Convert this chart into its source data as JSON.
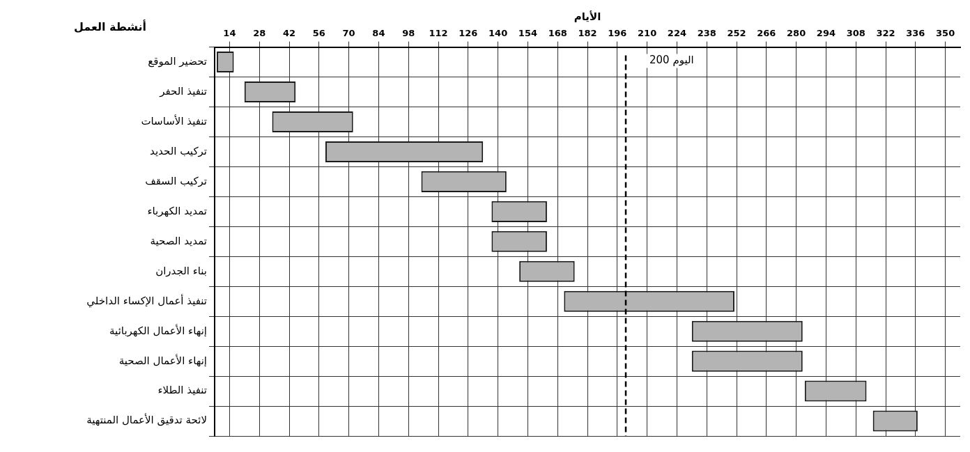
{
  "chart_data": {
    "type": "bar",
    "orientation": "horizontal",
    "xlabel": "الأيام",
    "ylabel": "أنشطة العمل",
    "categories": [
      "تحضير الموقع",
      "تنفيذ الحفر",
      "تنفيذ الأساسات",
      "تركيب الحديد",
      "تركيب السقف",
      "تمديد الكهرباء",
      "تمديد الصحية",
      "بناء الجدران",
      "تنفيذ أعمال الإكساء الداخلي",
      "إنهاء الأعمال الكهربائية",
      "إنهاء الأعمال الصحية",
      "تنفيذ الطلاء",
      "لائحة تدقيق الأعمال المنتهية"
    ],
    "base": [
      8,
      21,
      34,
      59,
      104,
      137,
      137,
      150,
      171,
      231,
      231,
      284,
      316
    ],
    "values": [
      8,
      24,
      38,
      74,
      40,
      26,
      26,
      26,
      80,
      52,
      52,
      29,
      21
    ],
    "color": "#b4b4b4",
    "xlim": [
      7,
      357
    ],
    "xticks": [
      14,
      28,
      42,
      56,
      70,
      84,
      98,
      112,
      126,
      140,
      154,
      168,
      182,
      196,
      210,
      224,
      238,
      252,
      266,
      280,
      294,
      308,
      322,
      336,
      350
    ],
    "ref_lines": [
      {
        "axis": "x",
        "value": 200,
        "label": "اليوم 200",
        "color": "#000000",
        "line_style": "dashed"
      }
    ],
    "grid": true,
    "legend": false
  }
}
